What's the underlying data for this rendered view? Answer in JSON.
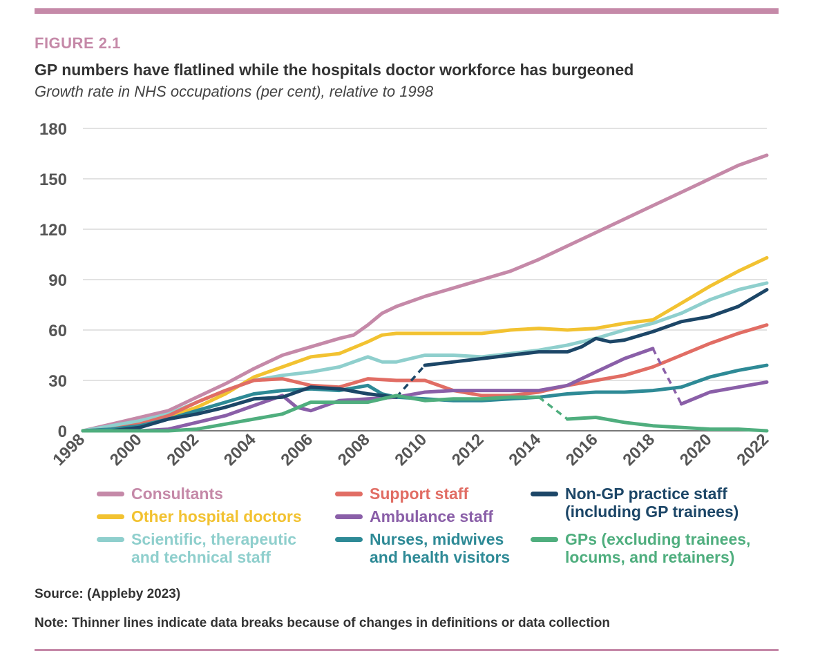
{
  "figure_label": "FIGURE 2.1",
  "title": "GP numbers have flatlined while the hospitals doctor workforce has burgeoned",
  "subtitle": "Growth rate in NHS occupations (per cent), relative to 1998",
  "source": "Source: (Appleby 2023)",
  "note": "Note: Thinner lines indicate data breaks because of changes in definitions or data collection",
  "colors": {
    "accent": "#c589a8",
    "grid": "#e2e2e2",
    "axis": "#777777",
    "tick_text": "#555555"
  },
  "chart_data": {
    "type": "line",
    "title": "GP numbers have flatlined while the hospitals doctor workforce has burgeoned",
    "subtitle": "Growth rate in NHS occupations (per cent), relative to 1998",
    "xlabel": "",
    "ylabel": "",
    "xlim": [
      1998,
      2022
    ],
    "ylim": [
      0,
      180
    ],
    "yticks": [
      0,
      30,
      60,
      90,
      120,
      150,
      180
    ],
    "xticks": [
      1998,
      2000,
      2002,
      2004,
      2006,
      2008,
      2010,
      2012,
      2014,
      2016,
      2018,
      2020,
      2022
    ],
    "grid": "horizontal",
    "legend_position": "bottom",
    "series": [
      {
        "name": "Consultants",
        "color": "#c589a8",
        "points": [
          [
            1998,
            0
          ],
          [
            1999,
            4
          ],
          [
            2000,
            8
          ],
          [
            2001,
            12
          ],
          [
            2002,
            20
          ],
          [
            2003,
            28
          ],
          [
            2004,
            37
          ],
          [
            2005,
            45
          ],
          [
            2006,
            50
          ],
          [
            2007,
            55
          ],
          [
            2007.5,
            57
          ],
          [
            2008,
            63
          ],
          [
            2008.5,
            70
          ],
          [
            2009,
            74
          ],
          [
            2010,
            80
          ],
          [
            2011,
            85
          ],
          [
            2012,
            90
          ],
          [
            2013,
            95
          ],
          [
            2014,
            102
          ],
          [
            2015,
            110
          ],
          [
            2016,
            118
          ],
          [
            2017,
            126
          ],
          [
            2018,
            134
          ],
          [
            2019,
            142
          ],
          [
            2020,
            150
          ],
          [
            2020.5,
            154
          ],
          [
            2021,
            158
          ],
          [
            2022,
            164
          ]
        ]
      },
      {
        "name": "Other hospital doctors",
        "color": "#f2c231",
        "points": [
          [
            1998,
            0
          ],
          [
            1999,
            2
          ],
          [
            2000,
            4
          ],
          [
            2001,
            8
          ],
          [
            2002,
            14
          ],
          [
            2003,
            22
          ],
          [
            2004,
            32
          ],
          [
            2005,
            38
          ],
          [
            2006,
            44
          ],
          [
            2007,
            46
          ],
          [
            2008,
            53
          ],
          [
            2008.5,
            57
          ],
          [
            2009,
            58
          ],
          [
            2010,
            58
          ],
          [
            2011,
            58
          ],
          [
            2012,
            58
          ],
          [
            2013,
            60
          ],
          [
            2014,
            61
          ],
          [
            2015,
            60
          ],
          [
            2016,
            61
          ],
          [
            2017,
            64
          ],
          [
            2018,
            66
          ],
          [
            2019,
            76
          ],
          [
            2020,
            86
          ],
          [
            2021,
            95
          ],
          [
            2022,
            103
          ]
        ]
      },
      {
        "name": "Scientific, therapeutic\nand technical staff",
        "color": "#8fcfcd",
        "points": [
          [
            1998,
            0
          ],
          [
            1999,
            3
          ],
          [
            2000,
            6
          ],
          [
            2001,
            10
          ],
          [
            2002,
            17
          ],
          [
            2003,
            24
          ],
          [
            2004,
            30
          ],
          [
            2005,
            33
          ],
          [
            2006,
            35
          ],
          [
            2007,
            38
          ],
          [
            2008,
            44
          ],
          [
            2008.5,
            41
          ],
          [
            2009,
            41
          ],
          [
            2010,
            45
          ],
          [
            2011,
            45
          ],
          [
            2012,
            44
          ],
          [
            2013,
            46
          ],
          [
            2014,
            48
          ],
          [
            2015,
            51
          ],
          [
            2016,
            55
          ],
          [
            2017,
            60
          ],
          [
            2018,
            64
          ],
          [
            2019,
            70
          ],
          [
            2020,
            78
          ],
          [
            2021,
            84
          ],
          [
            2022,
            88
          ]
        ]
      },
      {
        "name": "Support staff",
        "color": "#e16d64",
        "points": [
          [
            1998,
            0
          ],
          [
            1999,
            1
          ],
          [
            2000,
            4
          ],
          [
            2001,
            9
          ],
          [
            2002,
            17
          ],
          [
            2003,
            24
          ],
          [
            2004,
            30
          ],
          [
            2005,
            31
          ],
          [
            2006,
            27
          ],
          [
            2007,
            26
          ],
          [
            2008,
            31
          ],
          [
            2009,
            30
          ],
          [
            2010,
            30
          ],
          [
            2011,
            24
          ],
          [
            2012,
            21
          ],
          [
            2013,
            21
          ],
          [
            2014,
            23
          ],
          [
            2015,
            27
          ],
          [
            2016,
            30
          ],
          [
            2017,
            33
          ],
          [
            2018,
            38
          ],
          [
            2019,
            45
          ],
          [
            2020,
            52
          ],
          [
            2021,
            58
          ],
          [
            2022,
            63
          ]
        ]
      },
      {
        "name": "Ambulance staff",
        "color": "#8a5fa8",
        "points": [
          [
            1998,
            0
          ],
          [
            1999,
            0
          ],
          [
            2000,
            0
          ],
          [
            2001,
            1
          ],
          [
            2002,
            5
          ],
          [
            2003,
            9
          ],
          [
            2004,
            15
          ],
          [
            2005,
            21
          ],
          [
            2005.5,
            14
          ],
          [
            2006,
            12
          ],
          [
            2007,
            18
          ],
          [
            2008,
            19
          ],
          [
            2009,
            20
          ],
          [
            2010,
            23
          ],
          [
            2011,
            24
          ],
          [
            2012,
            24
          ],
          [
            2013,
            24
          ],
          [
            2014,
            24
          ],
          [
            2015,
            27
          ],
          [
            2016,
            35
          ],
          [
            2017,
            43
          ],
          [
            2018,
            49
          ]
        ]
      },
      {
        "name": "Ambulance staff (data break)",
        "legend": false,
        "dashed": true,
        "color": "#8a5fa8",
        "points": [
          [
            2018,
            49
          ],
          [
            2019,
            16
          ]
        ]
      },
      {
        "name": "Ambulance staff (after break)",
        "legend": false,
        "color": "#8a5fa8",
        "points": [
          [
            2019,
            16
          ],
          [
            2020,
            23
          ],
          [
            2021,
            26
          ],
          [
            2022,
            29
          ]
        ]
      },
      {
        "name": "Nurses, midwives\nand health visitors",
        "color": "#2e8a96",
        "points": [
          [
            1998,
            0
          ],
          [
            1999,
            1
          ],
          [
            2000,
            3
          ],
          [
            2001,
            7
          ],
          [
            2002,
            12
          ],
          [
            2003,
            17
          ],
          [
            2004,
            22
          ],
          [
            2005,
            24
          ],
          [
            2006,
            25
          ],
          [
            2007,
            24
          ],
          [
            2008,
            27
          ],
          [
            2008.5,
            22
          ],
          [
            2009,
            20
          ],
          [
            2010,
            19
          ],
          [
            2011,
            18
          ],
          [
            2012,
            18
          ],
          [
            2013,
            19
          ],
          [
            2014,
            20
          ],
          [
            2015,
            22
          ],
          [
            2016,
            23
          ],
          [
            2017,
            23
          ],
          [
            2018,
            24
          ],
          [
            2019,
            26
          ],
          [
            2020,
            32
          ],
          [
            2021,
            36
          ],
          [
            2022,
            39
          ]
        ]
      },
      {
        "name": "Non-GP practice staff\n(including GP trainees)",
        "color": "#1c4667",
        "points": [
          [
            1998,
            0
          ],
          [
            1999,
            0
          ],
          [
            2000,
            2
          ],
          [
            2001,
            7
          ],
          [
            2002,
            10
          ],
          [
            2003,
            14
          ],
          [
            2004,
            19
          ],
          [
            2005,
            20
          ],
          [
            2006,
            26
          ],
          [
            2007,
            25
          ],
          [
            2008,
            22
          ],
          [
            2008.5,
            21
          ],
          [
            2009,
            20
          ]
        ]
      },
      {
        "name": "Non-GP practice staff (data break)",
        "legend": false,
        "dashed": true,
        "color": "#1c4667",
        "points": [
          [
            2009,
            20
          ],
          [
            2010,
            39
          ]
        ]
      },
      {
        "name": "Non-GP practice staff (after break)",
        "legend": false,
        "color": "#1c4667",
        "points": [
          [
            2010,
            39
          ],
          [
            2011,
            41
          ],
          [
            2012,
            43
          ],
          [
            2013,
            45
          ],
          [
            2014,
            47
          ],
          [
            2015,
            47
          ],
          [
            2015.5,
            50
          ],
          [
            2016,
            55
          ],
          [
            2016.5,
            53
          ],
          [
            2017,
            54
          ],
          [
            2018,
            59
          ],
          [
            2019,
            65
          ],
          [
            2020,
            68
          ],
          [
            2021,
            74
          ],
          [
            2022,
            84
          ]
        ]
      },
      {
        "name": "GPs (excluding trainees,\nlocums, and retainers)",
        "color": "#4fae7e",
        "points": [
          [
            1998,
            0
          ],
          [
            1999,
            0
          ],
          [
            2000,
            0
          ],
          [
            2001,
            0
          ],
          [
            2002,
            1
          ],
          [
            2003,
            4
          ],
          [
            2004,
            7
          ],
          [
            2005,
            10
          ],
          [
            2006,
            17
          ],
          [
            2007,
            17
          ],
          [
            2008,
            17
          ],
          [
            2009,
            21
          ],
          [
            2010,
            18
          ],
          [
            2011,
            19
          ],
          [
            2012,
            19
          ],
          [
            2013,
            20
          ],
          [
            2014,
            20
          ]
        ]
      },
      {
        "name": "GPs (data break)",
        "legend": false,
        "dashed": true,
        "color": "#4fae7e",
        "points": [
          [
            2014,
            20
          ],
          [
            2015,
            7
          ]
        ]
      },
      {
        "name": "GPs (after break)",
        "legend": false,
        "color": "#4fae7e",
        "points": [
          [
            2015,
            7
          ],
          [
            2016,
            8
          ],
          [
            2017,
            5
          ],
          [
            2018,
            3
          ],
          [
            2019,
            2
          ],
          [
            2020,
            1
          ],
          [
            2021,
            1
          ],
          [
            2022,
            0
          ]
        ]
      }
    ]
  },
  "legend": [
    {
      "label": "Consultants",
      "color": "#c589a8"
    },
    {
      "label": "Support staff",
      "color": "#e16d64"
    },
    {
      "label": "Non-GP practice staff\n(including GP trainees)",
      "color": "#1c4667"
    },
    {
      "label": "Other hospital doctors",
      "color": "#f2c231"
    },
    {
      "label": "Ambulance staff",
      "color": "#8a5fa8"
    },
    {
      "label": "Scientific, therapeutic\nand technical staff",
      "color": "#8fcfcd"
    },
    {
      "label": "Nurses, midwives\nand health visitors",
      "color": "#2e8a96"
    },
    {
      "label": "GPs (excluding trainees,\nlocums, and retainers)",
      "color": "#4fae7e"
    }
  ]
}
